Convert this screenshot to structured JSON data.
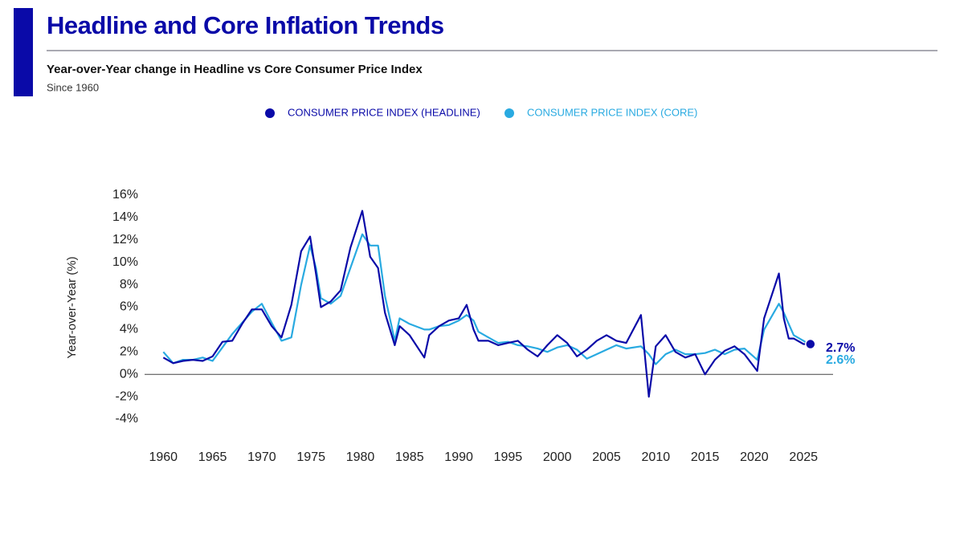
{
  "chart_data": {
    "type": "line",
    "title": "Headline and Core Inflation Trends",
    "subtitle": "Year-over-Year change in Headline vs Core Consumer Price Index",
    "note": "Since 1960",
    "y_label": "Year-over-Year (%)",
    "x": [
      1960,
      1961,
      1962,
      1963,
      1964,
      1965,
      1966,
      1967,
      1968,
      1969,
      1970,
      1971,
      1972,
      1973,
      1974,
      1974.9,
      1975.5,
      1976,
      1977,
      1978,
      1979,
      1980.2,
      1981,
      1981.8,
      1982.5,
      1983.5,
      1984,
      1985,
      1986.5,
      1987,
      1988,
      1989,
      1990,
      1990.8,
      1991.5,
      1992,
      1993,
      1994,
      1995,
      1996,
      1997,
      1998,
      1999,
      2000,
      2001,
      2002,
      2003,
      2004,
      2005,
      2006,
      2007,
      2008.5,
      2009.3,
      2010,
      2011,
      2012,
      2013,
      2014,
      2015,
      2016,
      2017,
      2018,
      2019,
      2020.3,
      2021,
      2022.5,
      2023,
      2023.5,
      2024,
      2025,
      2025.7
    ],
    "series": [
      {
        "name": "CONSUMER PRICE INDEX (HEADLINE)",
        "color": "#0a0aa8",
        "values": [
          1.5,
          1.0,
          1.2,
          1.3,
          1.2,
          1.6,
          2.9,
          3.0,
          4.5,
          5.8,
          5.8,
          4.3,
          3.3,
          6.2,
          11.0,
          12.3,
          9.0,
          6.0,
          6.5,
          7.5,
          11.3,
          14.6,
          10.5,
          9.5,
          5.5,
          2.6,
          4.3,
          3.5,
          1.5,
          3.5,
          4.3,
          4.8,
          5.0,
          6.2,
          4.0,
          3.0,
          3.0,
          2.6,
          2.8,
          3.0,
          2.2,
          1.6,
          2.6,
          3.5,
          2.8,
          1.6,
          2.2,
          3.0,
          3.5,
          3.0,
          2.8,
          5.3,
          -2.0,
          2.5,
          3.5,
          2.0,
          1.5,
          1.8,
          0.0,
          1.3,
          2.1,
          2.5,
          1.8,
          0.3,
          5.0,
          9.0,
          5.0,
          3.2,
          3.2,
          2.7,
          2.7
        ],
        "value_labels": [
          null,
          null,
          null,
          null,
          null,
          null,
          null,
          null,
          null,
          null,
          null,
          null,
          null,
          null,
          null,
          null,
          null,
          null,
          null,
          null,
          null,
          null,
          null,
          null,
          null,
          null,
          null,
          null,
          null,
          null,
          null,
          null,
          null,
          null,
          null,
          null,
          null,
          null,
          null,
          null,
          null,
          null,
          null,
          null,
          null,
          null,
          null,
          null,
          null,
          null,
          null,
          null,
          null,
          null,
          null,
          null,
          null,
          null,
          null,
          null,
          null,
          null,
          null,
          null,
          null,
          null,
          null,
          null,
          null,
          null,
          "2.7%"
        ]
      },
      {
        "name": "CONSUMER PRICE INDEX (CORE)",
        "color": "#29aae1",
        "values": [
          2.0,
          1.0,
          1.3,
          1.3,
          1.5,
          1.2,
          2.4,
          3.6,
          4.6,
          5.6,
          6.3,
          4.6,
          3.0,
          3.3,
          8.0,
          11.5,
          9.5,
          6.8,
          6.3,
          7.0,
          9.5,
          12.5,
          11.5,
          11.5,
          7.0,
          3.0,
          5.0,
          4.5,
          4.0,
          4.0,
          4.3,
          4.4,
          4.8,
          5.3,
          4.8,
          3.8,
          3.3,
          2.8,
          2.9,
          2.6,
          2.5,
          2.3,
          2.0,
          2.4,
          2.6,
          2.2,
          1.4,
          1.8,
          2.2,
          2.6,
          2.3,
          2.5,
          1.8,
          0.9,
          1.8,
          2.2,
          1.8,
          1.8,
          1.9,
          2.2,
          1.8,
          2.2,
          2.3,
          1.3,
          4.0,
          6.3,
          5.5,
          4.5,
          3.5,
          3.0,
          2.6
        ],
        "value_labels": [
          null,
          null,
          null,
          null,
          null,
          null,
          null,
          null,
          null,
          null,
          null,
          null,
          null,
          null,
          null,
          null,
          null,
          null,
          null,
          null,
          null,
          null,
          null,
          null,
          null,
          null,
          null,
          null,
          null,
          null,
          null,
          null,
          null,
          null,
          null,
          null,
          null,
          null,
          null,
          null,
          null,
          null,
          null,
          null,
          null,
          null,
          null,
          null,
          null,
          null,
          null,
          null,
          null,
          null,
          null,
          null,
          null,
          null,
          null,
          null,
          null,
          null,
          null,
          null,
          null,
          null,
          null,
          null,
          null,
          null,
          "2.6%"
        ]
      }
    ],
    "xlim": [
      1958.1,
      2028
    ],
    "xticks": [
      1960,
      1965,
      1970,
      1975,
      1980,
      1985,
      1990,
      1995,
      2000,
      2005,
      2010,
      2015,
      2020,
      2025
    ],
    "ylim": [
      -4,
      16
    ],
    "yticks": [
      {
        "value": 16,
        "label": "16%"
      },
      {
        "value": 14,
        "label": "14%"
      },
      {
        "value": 12,
        "label": "12%"
      },
      {
        "value": 10,
        "label": "10%"
      },
      {
        "value": 8,
        "label": "8%"
      },
      {
        "value": 6,
        "label": "6%"
      },
      {
        "value": 4,
        "label": "4%"
      },
      {
        "value": 2,
        "label": "2%"
      },
      {
        "value": 0,
        "label": "0%"
      },
      {
        "value": -2,
        "label": "-2%"
      },
      {
        "value": -4,
        "label": "-4%"
      }
    ]
  }
}
